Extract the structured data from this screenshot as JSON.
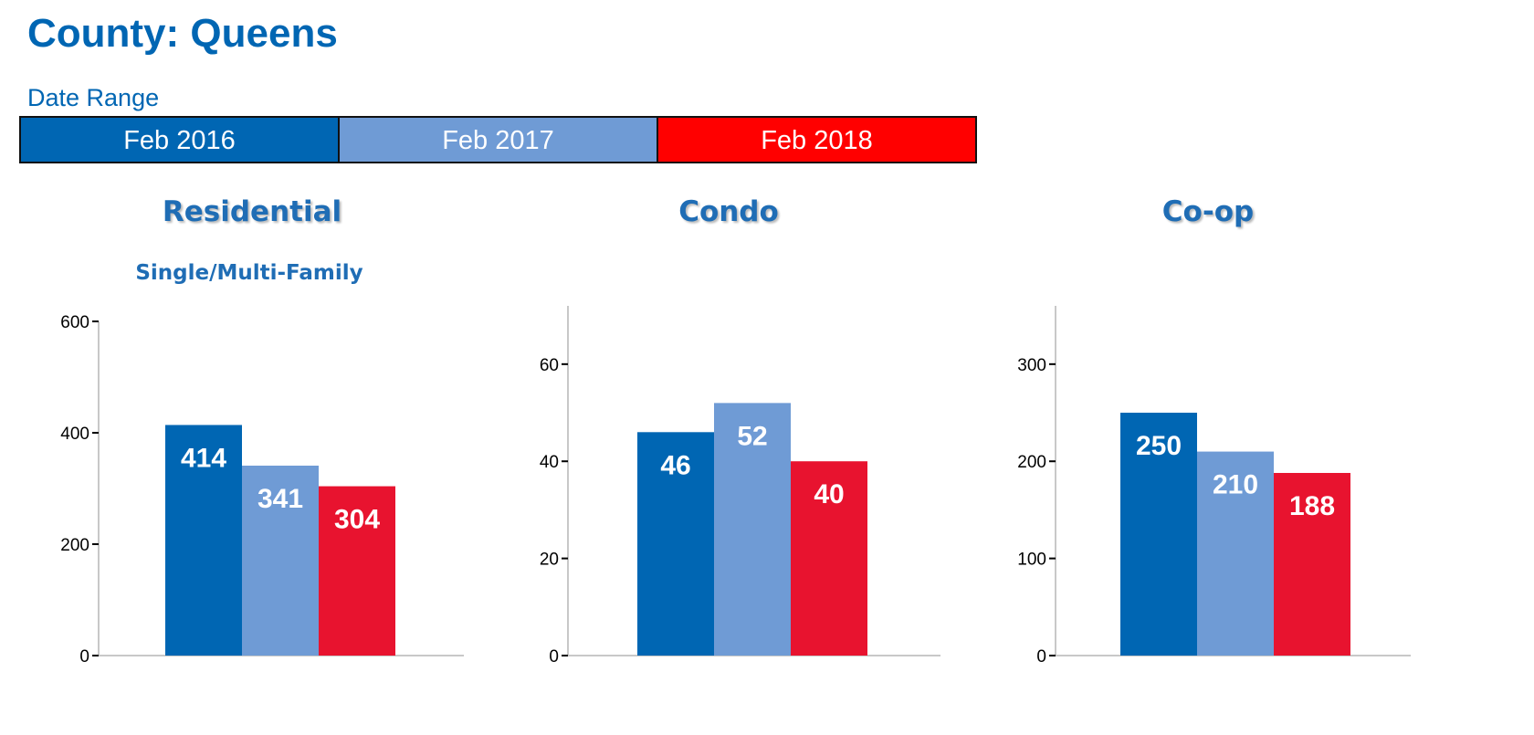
{
  "header": {
    "title": "County: Queens",
    "date_range_label": "Date Range"
  },
  "legend": [
    {
      "label": "Feb 2016",
      "color": "#0066b3"
    },
    {
      "label": "Feb 2017",
      "color": "#6f9bd5"
    },
    {
      "label": "Feb 2018",
      "color": "#ff0000"
    }
  ],
  "bar_colors": [
    "#0066b3",
    "#6f9bd5",
    "#e8132f"
  ],
  "chart_data": [
    {
      "type": "bar",
      "title": "Residential",
      "subtitle": "Single/Multi-Family",
      "categories": [
        "Feb 2016",
        "Feb 2017",
        "Feb 2018"
      ],
      "values": [
        414,
        341,
        304
      ],
      "ylim": [
        0,
        600
      ],
      "yticks": [
        0,
        200,
        400,
        600
      ],
      "grid": false
    },
    {
      "type": "bar",
      "title": "Condo",
      "subtitle": "",
      "categories": [
        "Feb 2016",
        "Feb 2017",
        "Feb 2018"
      ],
      "values": [
        46,
        52,
        40
      ],
      "ylim": [
        0,
        72
      ],
      "yticks": [
        0,
        20,
        40,
        60
      ],
      "grid": false
    },
    {
      "type": "bar",
      "title": "Co-op",
      "subtitle": "",
      "categories": [
        "Feb 2016",
        "Feb 2017",
        "Feb 2018"
      ],
      "values": [
        250,
        210,
        188
      ],
      "ylim": [
        0,
        360
      ],
      "yticks": [
        0,
        100,
        200,
        300
      ],
      "grid": false
    }
  ]
}
